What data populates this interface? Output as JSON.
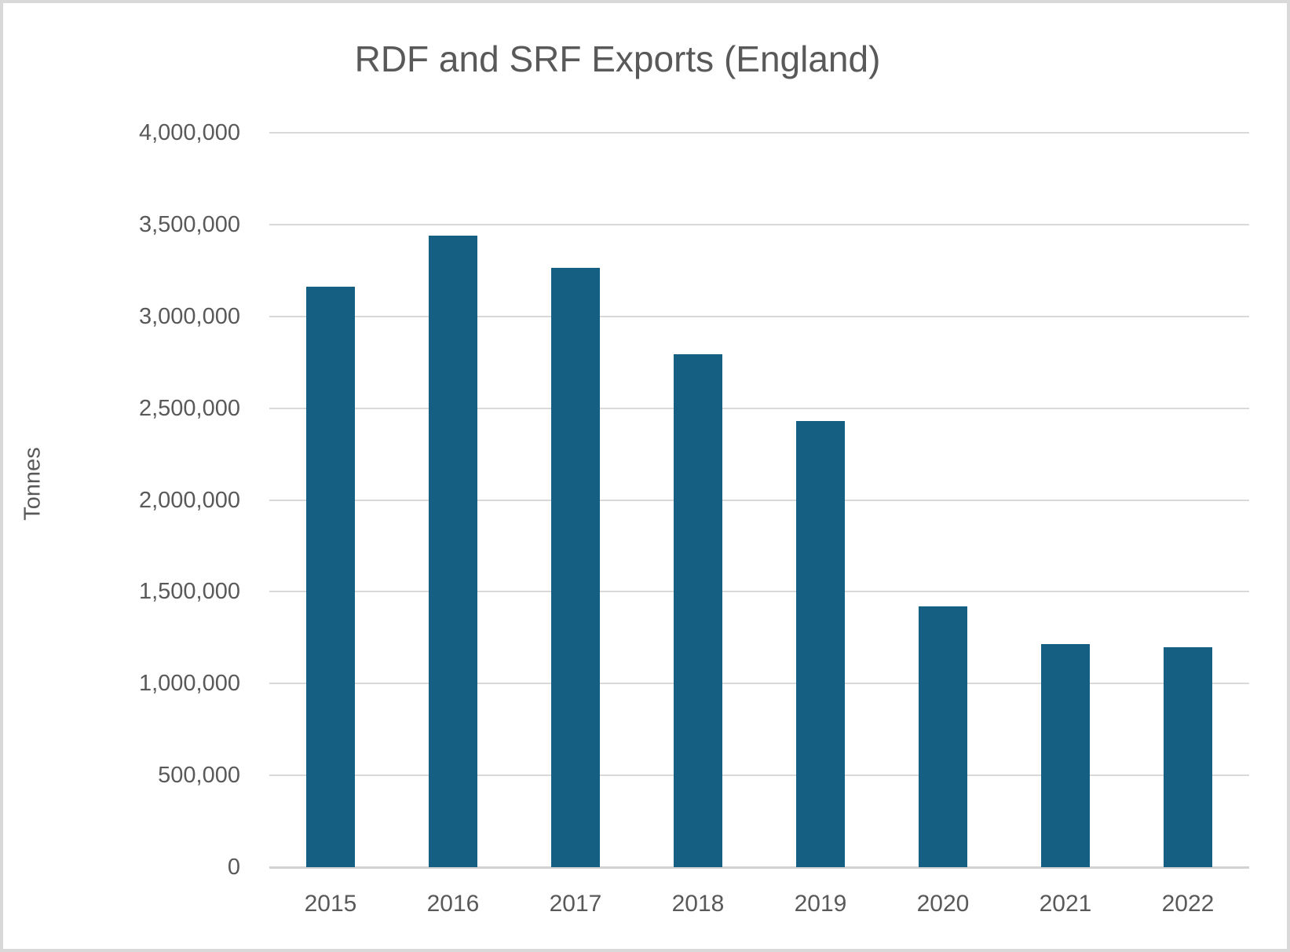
{
  "window": {
    "background": "#ffffff",
    "frame_color": "#d9d9d9"
  },
  "chart_data": {
    "type": "bar",
    "title": "RDF and SRF Exports (England)",
    "xlabel": "",
    "ylabel": "Tonnes",
    "categories": [
      "2015",
      "2016",
      "2017",
      "2018",
      "2019",
      "2020",
      "2021",
      "2022"
    ],
    "values": [
      3160000,
      3440000,
      3265000,
      2795000,
      2430000,
      1420000,
      1215000,
      1200000
    ],
    "ylim": [
      0,
      4000000
    ],
    "ytick_step": 500000,
    "ytick_labels": [
      "0",
      "500,000",
      "1,000,000",
      "1,500,000",
      "2,000,000",
      "2,500,000",
      "3,000,000",
      "3,500,000",
      "4,000,000"
    ],
    "grid": true,
    "legend": "none",
    "bar_color": "#156082",
    "gridline_color": "#d9d9d9",
    "axis_line_color": "#d2d2d2",
    "text_color": "#595959"
  }
}
